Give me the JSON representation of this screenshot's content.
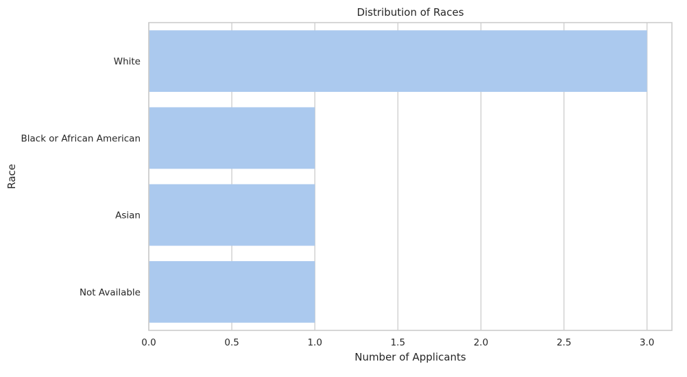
{
  "chart_data": {
    "type": "bar",
    "orientation": "horizontal",
    "title": "Distribution of Races",
    "xlabel": "Number of Applicants",
    "ylabel": "Race",
    "categories": [
      "White",
      "Black or African American",
      "Asian",
      "Not Available"
    ],
    "values": [
      3,
      1,
      1,
      1
    ],
    "xlim": [
      0,
      3.15
    ],
    "xticks": [
      0.0,
      0.5,
      1.0,
      1.5,
      2.0,
      2.5,
      3.0
    ],
    "xtick_labels": [
      "0.0",
      "0.5",
      "1.0",
      "1.5",
      "2.0",
      "2.5",
      "3.0"
    ],
    "grid": true,
    "bar_color": "#abc9ee",
    "grid_color": "#d4d4d4",
    "frame_color": "#cccccc"
  }
}
